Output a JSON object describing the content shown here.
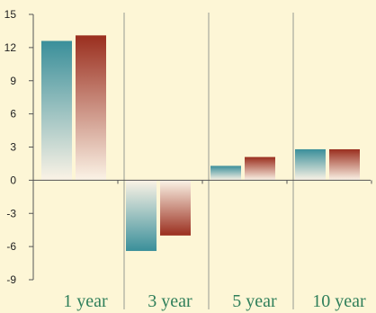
{
  "chart_data": {
    "type": "bar",
    "categories": [
      "1 year",
      "3 year",
      "5 year",
      "10 year"
    ],
    "series": [
      {
        "values": [
          12.6,
          -6.4,
          1.3,
          2.8
        ]
      },
      {
        "values": [
          13.1,
          -5.0,
          2.1,
          2.8
        ]
      }
    ],
    "title": "",
    "xlabel": "",
    "ylabel": "",
    "ylim": [
      -9,
      15
    ],
    "yticks": [
      "15",
      "12",
      "9",
      "6",
      "3",
      "0",
      "-3",
      "-6",
      "-9"
    ],
    "grid": false,
    "legend": "none"
  },
  "colors": {
    "background": "#fdf6d6",
    "series_1": "#3a8f9a",
    "series_2": "#9a2e1e",
    "axis": "#555555",
    "divider": "#b8b8a8",
    "category_label": "#2f7f5a"
  }
}
